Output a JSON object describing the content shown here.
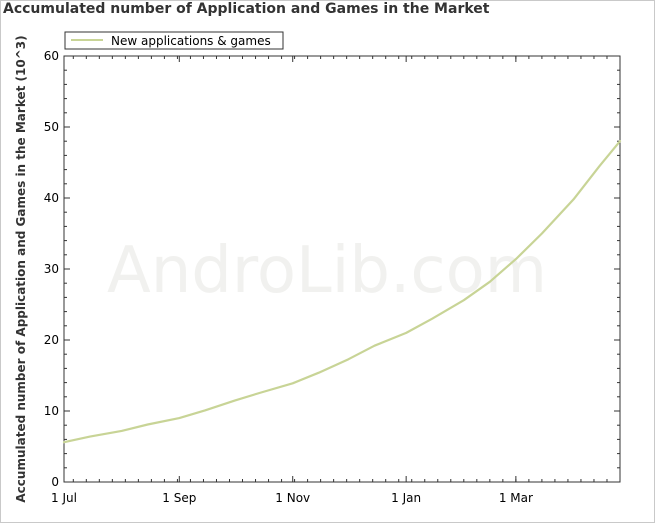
{
  "chart_data": {
    "type": "line",
    "title": "Accumulated number of Application and Games in the Market",
    "ylabel": "Accumulated number of Application and Games in the Market (10^3)",
    "xlabel": "",
    "watermark": "AndroLib.com",
    "ylim": [
      0,
      60
    ],
    "yticks": [
      0,
      10,
      20,
      30,
      40,
      50,
      60
    ],
    "xlim": [
      "2009-07-01",
      "2010-04-26"
    ],
    "xticks": [
      {
        "date": "2009-07-01",
        "label": "1 Jul"
      },
      {
        "date": "2009-09-01",
        "label": "1 Sep"
      },
      {
        "date": "2009-11-01",
        "label": "1 Nov"
      },
      {
        "date": "2010-01-01",
        "label": "1 Jan"
      },
      {
        "date": "2010-03-01",
        "label": "1 Mar"
      }
    ],
    "grid": false,
    "legend_position": "top-left",
    "series": [
      {
        "name": "New applications & games",
        "color": "#c8d496",
        "points": [
          [
            "2009-07-01",
            5.6
          ],
          [
            "2009-07-15",
            6.4
          ],
          [
            "2009-08-01",
            7.2
          ],
          [
            "2009-08-15",
            8.1
          ],
          [
            "2009-09-01",
            9.0
          ],
          [
            "2009-09-15",
            10.1
          ],
          [
            "2009-10-01",
            11.5
          ],
          [
            "2009-10-15",
            12.6
          ],
          [
            "2009-11-01",
            13.9
          ],
          [
            "2009-11-15",
            15.4
          ],
          [
            "2009-12-01",
            17.3
          ],
          [
            "2009-12-15",
            19.2
          ],
          [
            "2010-01-01",
            21.0
          ],
          [
            "2010-01-15",
            23.0
          ],
          [
            "2010-02-01",
            25.6
          ],
          [
            "2010-02-15",
            28.2
          ],
          [
            "2010-03-01",
            31.4
          ],
          [
            "2010-03-15",
            35.0
          ],
          [
            "2010-04-01",
            39.8
          ],
          [
            "2010-04-15",
            44.5
          ],
          [
            "2010-04-26",
            48.0
          ]
        ]
      }
    ]
  }
}
